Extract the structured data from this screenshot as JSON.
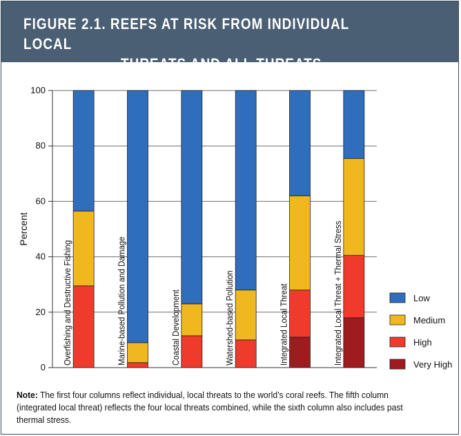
{
  "figure": {
    "title_line1": "FIGURE 2.1.  REEFS AT RISK FROM INDIVIDUAL LOCAL",
    "title_line2": "THREATS AND ALL THREATS INTEGRATED",
    "note_label": "Note:",
    "note_text": " The first four columns reflect individual, local threats to the world’s coral reefs. The fifth column (integrated local threat) reflects the four local threats combined, while the sixth column also includes past thermal stress."
  },
  "colors": {
    "header_bg": "#4a5f73",
    "low": "#2f6dbd",
    "medium": "#f0b71f",
    "high": "#ee3b2b",
    "very_high": "#9e1b1f"
  },
  "chart_data": {
    "type": "bar",
    "stacked": true,
    "ylabel": "Percent",
    "ylim": [
      0,
      100
    ],
    "yticks": [
      0,
      20,
      40,
      60,
      80,
      100
    ],
    "grid": true,
    "legend_position": "right",
    "categories": [
      "Overfishing and Destructive Fishing",
      "Marine-based Pollution and Damage",
      "Coastal Development",
      "Watershed-based Pollution",
      "Integrated Local Threat",
      "Integrated Local Threat + Thermal Stress"
    ],
    "series": [
      {
        "name": "Very High",
        "color": "#9e1b1f",
        "values": [
          0,
          0,
          0,
          0,
          11,
          18
        ]
      },
      {
        "name": "High",
        "color": "#ee3b2b",
        "values": [
          29.5,
          1.8,
          11.5,
          10,
          17,
          22.5
        ]
      },
      {
        "name": "Medium",
        "color": "#f0b71f",
        "values": [
          27,
          7.2,
          11.5,
          18,
          34,
          35
        ]
      },
      {
        "name": "Low",
        "color": "#2f6dbd",
        "values": [
          43.5,
          91,
          77,
          72,
          38,
          24.5
        ]
      }
    ],
    "legend_order": [
      "Low",
      "Medium",
      "High",
      "Very High"
    ]
  }
}
